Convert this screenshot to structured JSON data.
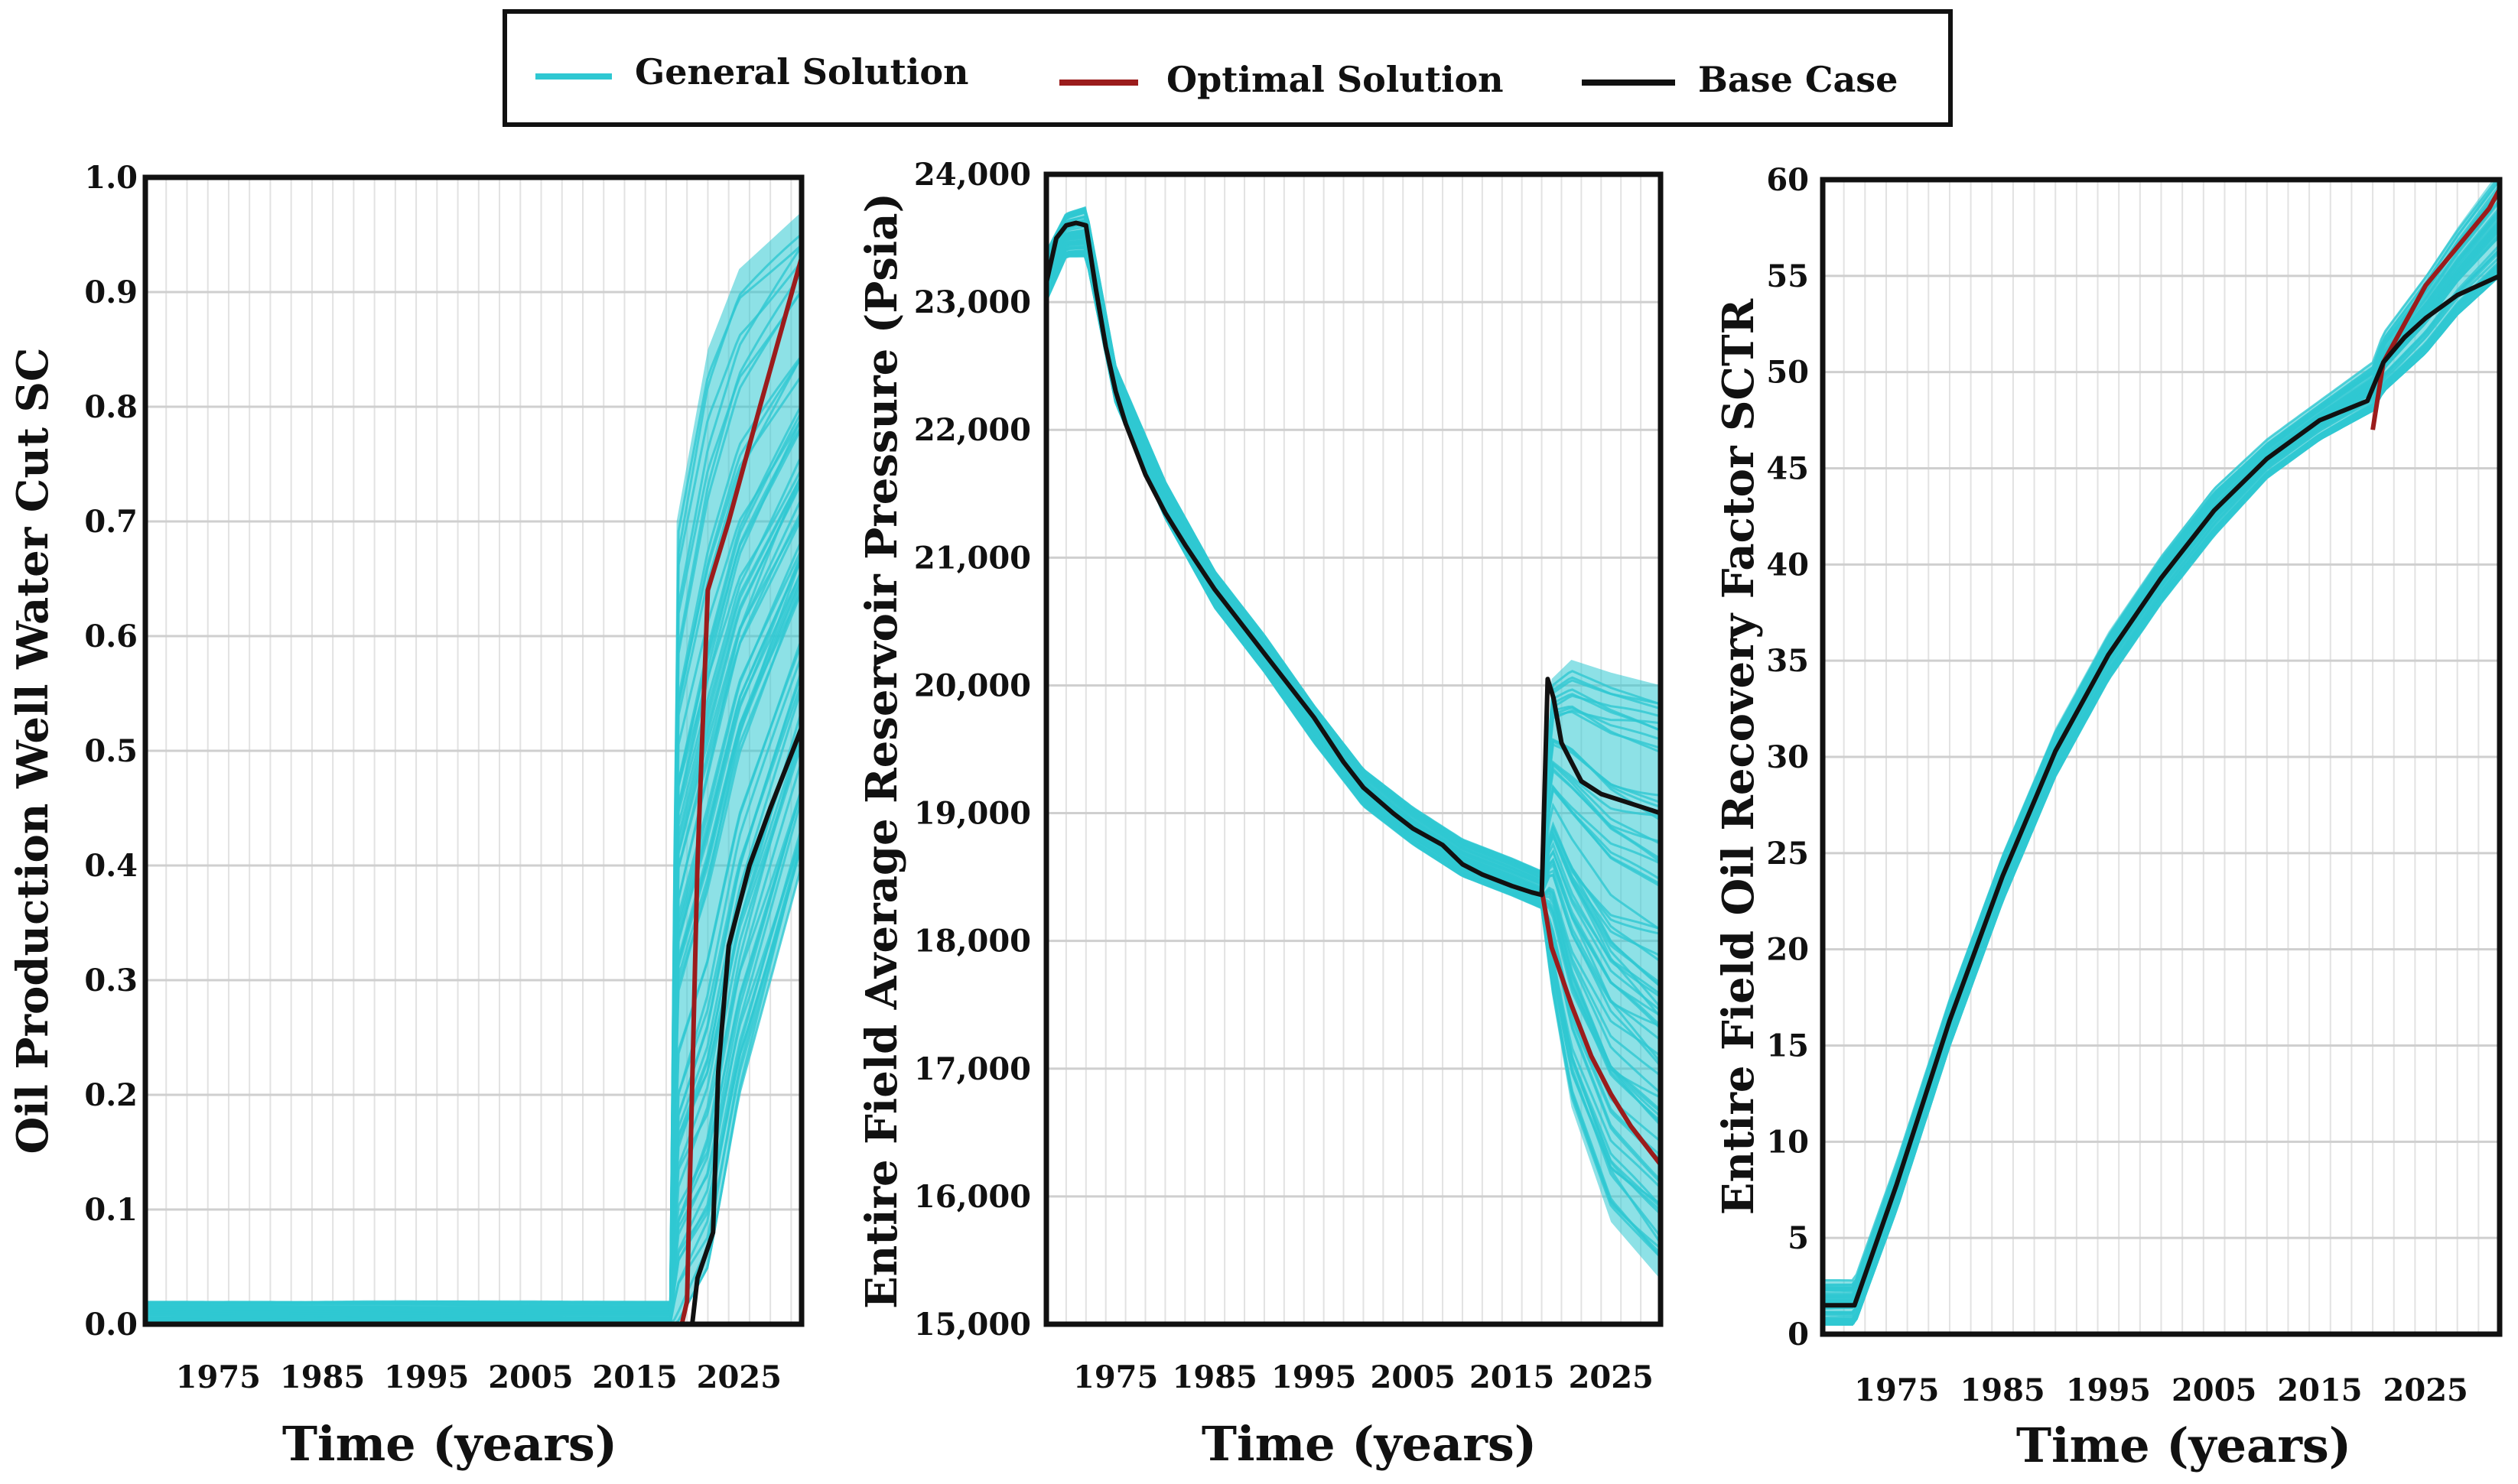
{
  "legend": {
    "items": [
      {
        "label": "General Solution",
        "color": "#2fc8d2"
      },
      {
        "label": "Optimal Solution",
        "color": "#9b1c1c"
      },
      {
        "label": "Base Case",
        "color": "#111111"
      }
    ]
  },
  "chart_data": [
    {
      "type": "line",
      "xlabel": "Time (years)",
      "ylabel": "Oil Production Well Water Cut SC",
      "xlim": [
        1968,
        2031
      ],
      "ylim": [
        0,
        1.0
      ],
      "xticks": [
        1975,
        1985,
        1995,
        2005,
        2015,
        2025
      ],
      "xtick_labels": [
        "1975",
        "1985",
        "1995",
        "2005",
        "2015",
        "2025"
      ],
      "yticks": [
        0,
        0.1,
        0.2,
        0.3,
        0.4,
        0.5,
        0.6,
        0.7,
        0.8,
        0.9,
        1.0
      ],
      "ytick_labels": [
        "0.0",
        "0.1",
        "0.2",
        "0.3",
        "0.4",
        "0.5",
        "0.6",
        "0.7",
        "0.8",
        "0.9",
        "1.0"
      ],
      "grid": true,
      "band": {
        "x": [
          1968,
          2018.5,
          2019,
          2022,
          2025,
          2031
        ],
        "lower": [
          0.0,
          0.0,
          0.0,
          0.05,
          0.2,
          0.4
        ],
        "upper": [
          0.02,
          0.02,
          0.7,
          0.85,
          0.92,
          0.97
        ]
      },
      "series": [
        {
          "role": "optimal",
          "x": [
            1968,
            2019.5,
            2020,
            2021,
            2022,
            2024,
            2027,
            2031
          ],
          "y": [
            0,
            0,
            0.02,
            0.4,
            0.64,
            0.7,
            0.8,
            0.93
          ]
        },
        {
          "role": "base",
          "x": [
            1968,
            2020.5,
            2021,
            2022.5,
            2023,
            2024,
            2026,
            2028,
            2031
          ],
          "y": [
            0,
            0,
            0.04,
            0.08,
            0.22,
            0.33,
            0.4,
            0.45,
            0.52
          ]
        }
      ]
    },
    {
      "type": "line",
      "xlabel": "Time (years)",
      "ylabel": "Entire Field Average Reservoir Pressure (Psia)",
      "xlim": [
        1968,
        2030
      ],
      "ylim": [
        15000,
        24000
      ],
      "xticks": [
        1975,
        1985,
        1995,
        2005,
        2015,
        2025
      ],
      "xtick_labels": [
        "1975",
        "1985",
        "1995",
        "2005",
        "2015",
        "2025"
      ],
      "yticks": [
        15000,
        16000,
        17000,
        18000,
        19000,
        20000,
        21000,
        22000,
        23000,
        24000
      ],
      "ytick_labels": [
        "15,000",
        "16,000",
        "17,000",
        "18,000",
        "19,000",
        "20,000",
        "21,000",
        "22,000",
        "23,000",
        "24,000"
      ],
      "grid": true,
      "band": {
        "x": [
          1968,
          1970,
          1972,
          1975,
          1980,
          1985,
          1990,
          1995,
          2000,
          2005,
          2010,
          2015,
          2018,
          2019,
          2021,
          2025,
          2030
        ],
        "lower": [
          23000,
          23350,
          23350,
          22200,
          21300,
          20600,
          20100,
          19550,
          19050,
          18750,
          18500,
          18350,
          18250,
          17600,
          16700,
          15800,
          15350
        ],
        "upper": [
          23400,
          23700,
          23750,
          22500,
          21600,
          20900,
          20400,
          19850,
          19350,
          19050,
          18800,
          18650,
          18550,
          20050,
          20200,
          20100,
          20000
        ]
      },
      "series": [
        {
          "role": "optimal",
          "x": [
            2018,
            2019,
            2021,
            2023,
            2025,
            2027,
            2030
          ],
          "y": [
            18400,
            17950,
            17500,
            17100,
            16800,
            16550,
            16250
          ]
        },
        {
          "role": "base",
          "x": [
            1968,
            1969,
            1970,
            1971,
            1972,
            1973,
            1974,
            1975,
            1976,
            1978,
            1980,
            1982,
            1985,
            1988,
            1990,
            1993,
            1995,
            1998,
            2000,
            2003,
            2005,
            2008,
            2010,
            2012,
            2015,
            2017,
            2018,
            2018.6,
            2019.2,
            2020,
            2021,
            2022,
            2024,
            2026,
            2028,
            2030
          ],
          "y": [
            23150,
            23500,
            23600,
            23620,
            23600,
            23100,
            22650,
            22300,
            22050,
            21650,
            21350,
            21100,
            20750,
            20450,
            20250,
            19950,
            19750,
            19400,
            19200,
            19000,
            18880,
            18750,
            18600,
            18520,
            18430,
            18380,
            18360,
            20050,
            19900,
            19550,
            19400,
            19250,
            19150,
            19100,
            19050,
            19000
          ]
        }
      ]
    },
    {
      "type": "line",
      "xlabel": "Time (years)",
      "ylabel": "Entire Field Oil Recovery Factor SCTR",
      "xlim": [
        1968,
        2032
      ],
      "ylim": [
        0,
        60
      ],
      "xticks": [
        1975,
        1985,
        1995,
        2005,
        2015,
        2025
      ],
      "xtick_labels": [
        "1975",
        "1985",
        "1995",
        "2005",
        "2015",
        "2025"
      ],
      "yticks": [
        0,
        5,
        10,
        15,
        20,
        25,
        30,
        35,
        40,
        45,
        50,
        55,
        60
      ],
      "ytick_labels": [
        "0",
        "5",
        "10",
        "15",
        "20",
        "25",
        "30",
        "35",
        "40",
        "45",
        "50",
        "55",
        "60"
      ],
      "grid": true,
      "band": {
        "x": [
          1968,
          1971,
          1975,
          1980,
          1985,
          1990,
          1995,
          2000,
          2005,
          2010,
          2015,
          2020,
          2021,
          2025,
          2028,
          2032
        ],
        "lower": [
          0.5,
          0.5,
          6.5,
          15,
          22.5,
          29,
          34,
          38,
          41.5,
          44.5,
          46.5,
          48,
          49,
          51,
          53,
          55
        ],
        "upper": [
          2.8,
          2.8,
          9,
          17.5,
          25,
          31.5,
          36.5,
          40.5,
          44,
          46.5,
          48.5,
          50.5,
          52,
          55,
          57.5,
          60.5
        ]
      },
      "series": [
        {
          "role": "optimal",
          "x": [
            2020,
            2021,
            2023,
            2025,
            2028,
            2031,
            2032
          ],
          "y": [
            47,
            50.5,
            52.5,
            54.5,
            56.5,
            58.5,
            59.5
          ]
        },
        {
          "role": "base",
          "x": [
            1968,
            1971,
            1975,
            1980,
            1985,
            1990,
            1995,
            2000,
            2005,
            2010,
            2015,
            2019.5,
            2021,
            2023,
            2025,
            2028,
            2032
          ],
          "y": [
            1.5,
            1.5,
            7.8,
            16.3,
            23.8,
            30.3,
            35.3,
            39.3,
            42.8,
            45.5,
            47.5,
            48.5,
            50.5,
            51.8,
            52.8,
            54,
            55
          ]
        }
      ]
    }
  ]
}
